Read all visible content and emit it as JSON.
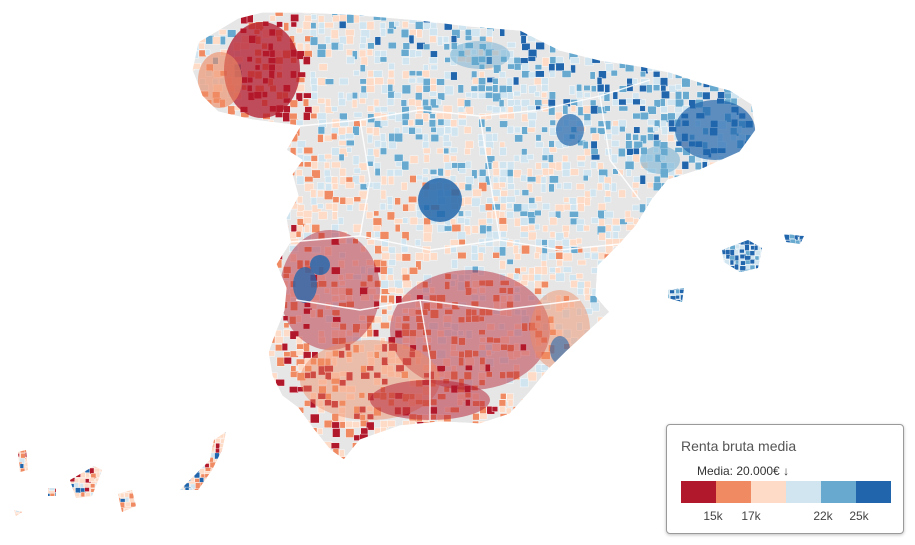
{
  "map": {
    "land_color": "#e6e6e6",
    "border_color": "#ffffff",
    "regions": [
      {
        "name": "peninsula"
      },
      {
        "name": "balearic-islands"
      },
      {
        "name": "canary-islands"
      }
    ]
  },
  "legend": {
    "title": "Renta bruta media",
    "mean_label": "Media: 20.000€",
    "mean_arrow": "↓",
    "classes": [
      {
        "color": "#b2182b"
      },
      {
        "color": "#ef8a62"
      },
      {
        "color": "#fddbc7"
      },
      {
        "color": "#d1e5f0"
      },
      {
        "color": "#67a9cf"
      },
      {
        "color": "#2166ac"
      }
    ],
    "ticks": [
      "15k",
      "17k",
      "22k",
      "25k"
    ]
  }
}
